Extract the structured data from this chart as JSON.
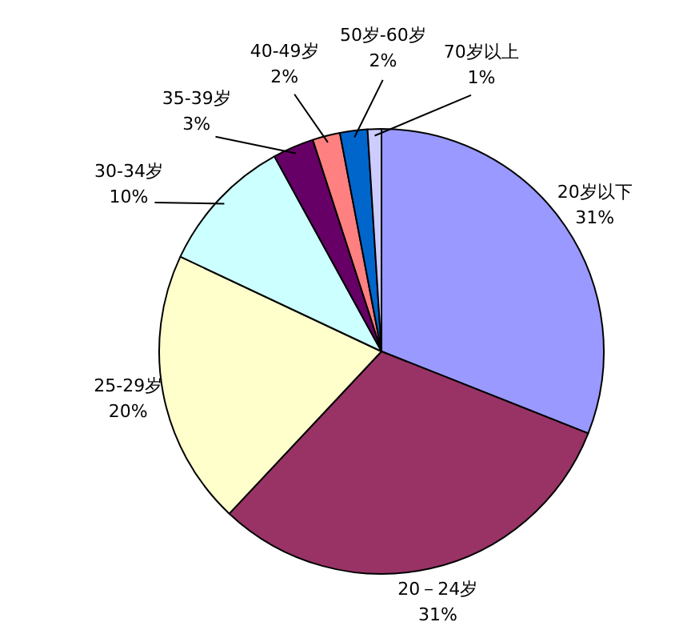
{
  "chart_data": {
    "type": "pie",
    "categories": [
      "20岁以下",
      "20－24岁",
      "25-29岁",
      "30-34岁",
      "35-39岁",
      "40-49岁",
      "50岁-60岁",
      "70岁以上"
    ],
    "values": [
      31,
      31,
      20,
      10,
      3,
      2,
      2,
      1
    ],
    "colors": [
      "#9999ff",
      "#993366",
      "#ffffcc",
      "#ccffff",
      "#660066",
      "#ff8080",
      "#0066cc",
      "#ccccff"
    ],
    "value_labels": [
      "31%",
      "31%",
      "20%",
      "10%",
      "3%",
      "2%",
      "2%",
      "1%"
    ]
  }
}
